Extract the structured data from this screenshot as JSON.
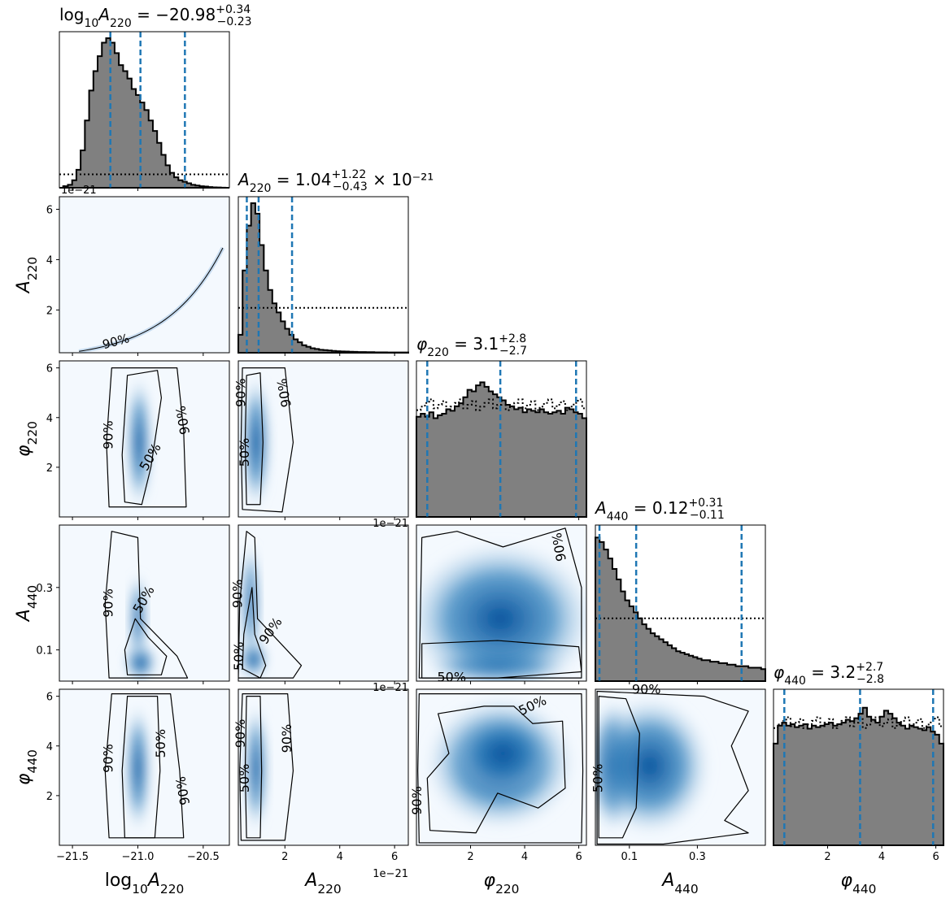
{
  "chart_data": {
    "type": "corner",
    "parameters": [
      {
        "id": "logA220",
        "label_html": "log<tspan baseline-shift='sub' font-size='70%'>10</tspan><tspan font-style='italic'>A</tspan><tspan baseline-shift='sub' font-size='70%'>220</tspan>",
        "range": [
          -21.6,
          -20.3
        ],
        "ticks": [
          -21.5,
          -21.0,
          -20.5
        ],
        "tick_labels": [
          "−21.5",
          "−21.0",
          "−20.5"
        ],
        "title": {
          "name": "log₁₀A₂₂₀",
          "median": "−20.98",
          "plus": "+0.34",
          "minus": "−0.23",
          "suffix": ""
        },
        "quantiles": [
          -21.21,
          -20.98,
          -20.64
        ],
        "hist": [
          0,
          0.01,
          0.02,
          0.05,
          0.12,
          0.25,
          0.45,
          0.65,
          0.78,
          0.88,
          0.97,
          1.0,
          0.97,
          0.9,
          0.82,
          0.78,
          0.73,
          0.66,
          0.62,
          0.57,
          0.52,
          0.45,
          0.38,
          0.3,
          0.22,
          0.15,
          0.1,
          0.07,
          0.05,
          0.04,
          0.03,
          0.02,
          0.015,
          0.01,
          0.008,
          0.005,
          0.003,
          0.002,
          0.001,
          0
        ],
        "prior": 0.09
      },
      {
        "id": "A220",
        "label_html": "<tspan font-style='italic'>A</tspan><tspan baseline-shift='sub' font-size='70%'>220</tspan>",
        "range": [
          0.3,
          6.5
        ],
        "ticks": [
          2,
          4,
          6
        ],
        "tick_labels": [
          "2",
          "4",
          "6"
        ],
        "offset": "1e−21",
        "title": {
          "name": "A₂₂₀",
          "median": "1.04",
          "plus": "+1.22",
          "minus": "−0.43",
          "suffix": "× 10⁻²¹"
        },
        "quantiles": [
          0.61,
          1.04,
          2.26
        ],
        "hist": [
          0.12,
          0.55,
          0.85,
          1.0,
          0.93,
          0.72,
          0.55,
          0.42,
          0.33,
          0.27,
          0.21,
          0.16,
          0.12,
          0.09,
          0.07,
          0.05,
          0.04,
          0.03,
          0.025,
          0.02,
          0.018,
          0.015,
          0.012,
          0.01,
          0.009,
          0.008,
          0.007,
          0.006,
          0.005,
          0.005,
          0.004,
          0.004,
          0.003,
          0.003,
          0.003,
          0.002,
          0.002,
          0.002,
          0.002,
          0.002
        ],
        "prior": 0.3
      },
      {
        "id": "phi220",
        "label_html": "<tspan font-style='italic'>φ</tspan><tspan baseline-shift='sub' font-size='70%'>220</tspan>",
        "range": [
          0,
          6.283
        ],
        "ticks": [
          2,
          4,
          6
        ],
        "tick_labels": [
          "2",
          "4",
          "6"
        ],
        "title": {
          "name": "φ₂₂₀",
          "median": "3.1",
          "plus": "+2.8",
          "minus": "−2.7",
          "suffix": ""
        },
        "quantiles": [
          0.4,
          3.1,
          5.9
        ],
        "hist": [
          0.67,
          0.69,
          0.67,
          0.7,
          0.66,
          0.68,
          0.69,
          0.72,
          0.71,
          0.74,
          0.76,
          0.8,
          0.85,
          0.84,
          0.88,
          0.9,
          0.87,
          0.84,
          0.82,
          0.8,
          0.78,
          0.75,
          0.74,
          0.72,
          0.73,
          0.7,
          0.72,
          0.71,
          0.7,
          0.72,
          0.7,
          0.69,
          0.7,
          0.71,
          0.69,
          0.73,
          0.72,
          0.7,
          0.69,
          0.66
        ],
        "prior": 0.75
      },
      {
        "id": "A440",
        "label_html": "<tspan font-style='italic'>A</tspan><tspan baseline-shift='sub' font-size='70%'>440</tspan>",
        "range": [
          0,
          0.5
        ],
        "ticks": [
          0.1,
          0.3
        ],
        "tick_labels": [
          "0.1",
          "0.3"
        ],
        "title": {
          "name": "A₄₄₀",
          "median": "0.12",
          "plus": "+0.31",
          "minus": "−0.11",
          "suffix": ""
        },
        "quantiles": [
          0.012,
          0.12,
          0.43
        ],
        "hist": [
          0.96,
          0.93,
          0.88,
          0.82,
          0.75,
          0.68,
          0.6,
          0.54,
          0.5,
          0.46,
          0.42,
          0.38,
          0.35,
          0.32,
          0.3,
          0.28,
          0.26,
          0.24,
          0.22,
          0.2,
          0.19,
          0.18,
          0.17,
          0.16,
          0.15,
          0.14,
          0.14,
          0.13,
          0.13,
          0.12,
          0.12,
          0.11,
          0.11,
          0.1,
          0.1,
          0.1,
          0.09,
          0.09,
          0.09,
          0.08
        ],
        "prior": 0.42
      },
      {
        "id": "phi440",
        "label_html": "<tspan font-style='italic'>φ</tspan><tspan baseline-shift='sub' font-size='70%'>440</tspan>",
        "range": [
          0,
          6.283
        ],
        "ticks": [
          2,
          4,
          6
        ],
        "tick_labels": [
          "2",
          "4",
          "6"
        ],
        "title": {
          "name": "φ₄₄₀",
          "median": "3.2",
          "plus": "+2.7",
          "minus": "−2.8",
          "suffix": ""
        },
        "quantiles": [
          0.4,
          3.2,
          5.9
        ],
        "hist": [
          0.68,
          0.8,
          0.82,
          0.8,
          0.81,
          0.79,
          0.8,
          0.81,
          0.78,
          0.8,
          0.79,
          0.8,
          0.81,
          0.82,
          0.8,
          0.81,
          0.82,
          0.84,
          0.83,
          0.85,
          0.88,
          0.92,
          0.86,
          0.84,
          0.82,
          0.86,
          0.9,
          0.88,
          0.85,
          0.82,
          0.8,
          0.78,
          0.8,
          0.79,
          0.78,
          0.77,
          0.79,
          0.76,
          0.74,
          0.68
        ],
        "prior": 0.82
      }
    ],
    "contour_levels": [
      "50%",
      "90%"
    ],
    "colors": {
      "hist_fill": "#808080",
      "quantile_line": "#1f77b4",
      "density": "#08519c"
    }
  }
}
